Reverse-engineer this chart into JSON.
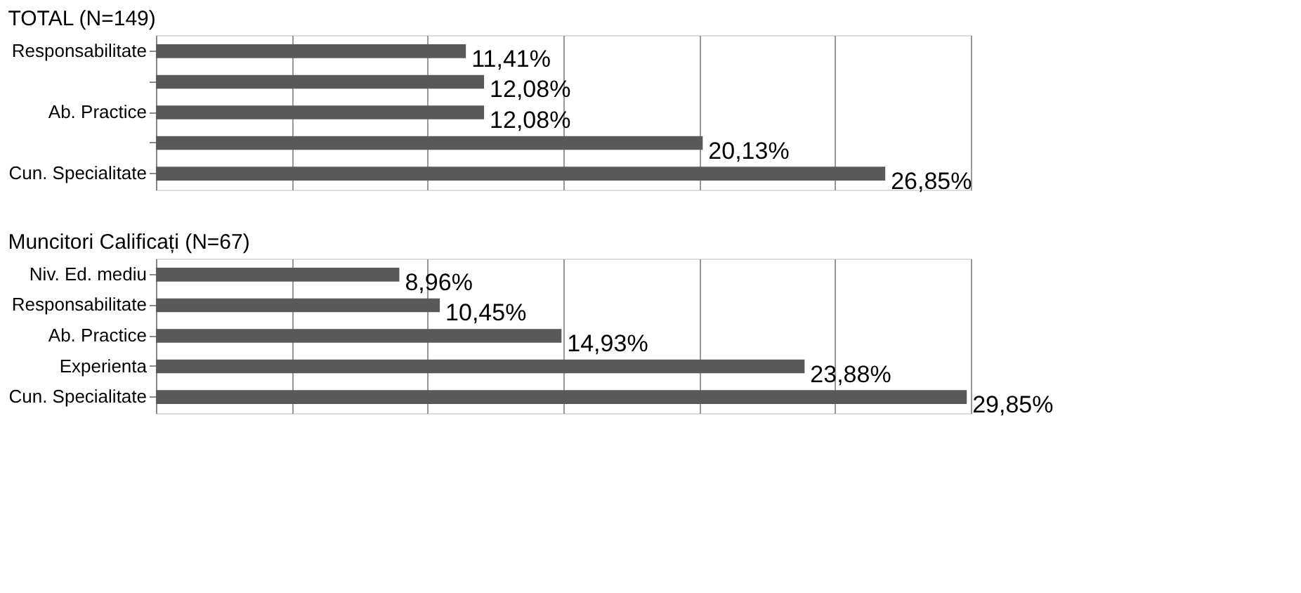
{
  "chart_data": [
    {
      "type": "bar",
      "orientation": "horizontal",
      "title": "TOTAL (N=149)",
      "categories": [
        "Responsabilitate",
        null,
        "Ab. Practice",
        null,
        "Cun. Specialitate"
      ],
      "values": [
        11.41,
        12.08,
        12.08,
        20.13,
        26.85
      ],
      "value_labels": [
        "11,41%",
        "12,08%",
        "12,08%",
        "20,13%",
        "26,85%"
      ],
      "colors": [
        "#595959",
        "#595959",
        "#595959",
        "#595959",
        "#595959"
      ],
      "xlim": [
        0,
        30
      ],
      "xticks": [
        {
          "value": 0,
          "label": null
        },
        {
          "value": 5,
          "label": null
        },
        {
          "value": 10,
          "label": null
        },
        {
          "value": 15,
          "label": null
        },
        {
          "value": 20,
          "label": null
        },
        {
          "value": 25,
          "label": null
        },
        {
          "value": 30,
          "label": null
        }
      ],
      "grid": "x",
      "tick_labels": "y"
    },
    {
      "type": "bar",
      "orientation": "horizontal",
      "title": "Muncitori Calificați (N=67)",
      "categories": [
        "Niv. Ed. mediu",
        "Responsabilitate",
        "Ab. Practice",
        "Experienta",
        "Cun. Specialitate"
      ],
      "values": [
        8.96,
        10.45,
        14.93,
        23.88,
        29.85
      ],
      "value_labels": [
        "8,96%",
        "10,45%",
        "14,93%",
        "23,88%",
        "29,85%"
      ],
      "colors": [
        "#595959",
        "#595959",
        "#595959",
        "#595959",
        "#595959"
      ],
      "xlim": [
        0,
        30
      ],
      "xticks": [
        {
          "value": 0,
          "label": null
        },
        {
          "value": 5,
          "label": null
        },
        {
          "value": 10,
          "label": null
        },
        {
          "value": 15,
          "label": null
        },
        {
          "value": 20,
          "label": null
        },
        {
          "value": 25,
          "label": null
        },
        {
          "value": 30,
          "label": null
        }
      ],
      "grid": "x",
      "tick_labels": "y"
    }
  ]
}
